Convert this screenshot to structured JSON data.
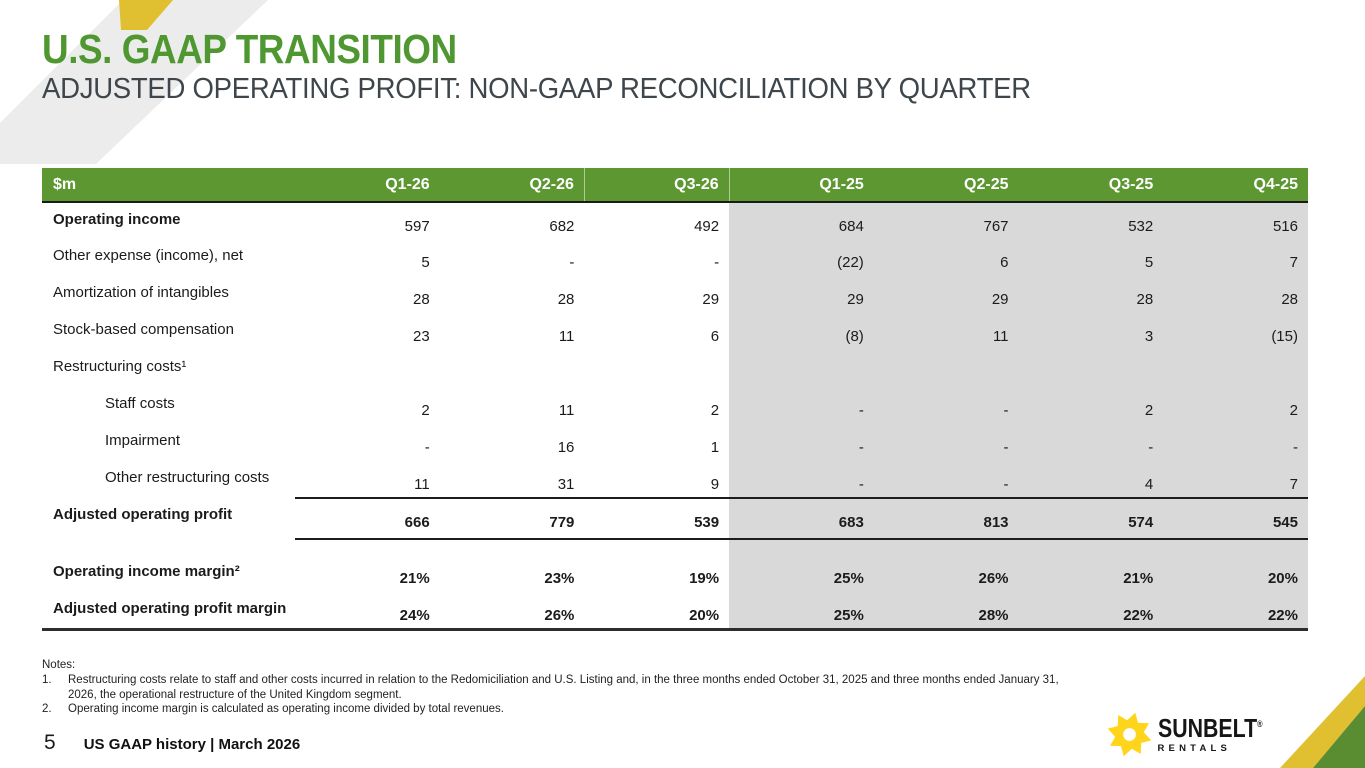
{
  "slide": {
    "title": "U.S. GAAP TRANSITION",
    "subtitle": "ADJUSTED OPERATING PROFIT: NON-GAAP RECONCILIATION BY QUARTER",
    "page_number": "5",
    "footer": "US GAAP history | March 2026"
  },
  "colors": {
    "header_green": "#5d9732",
    "title_green": "#4f9730",
    "subtitle_gray": "#3e464b",
    "shaded_column_gray": "#d9d9d9",
    "deco_gray": "#ececec",
    "deco_yellow": "#e0c030",
    "corner_green": "#5a8c32",
    "logo_yellow": "#ffd51c"
  },
  "table": {
    "unit_header": "$m",
    "columns": [
      "Q1-26",
      "Q2-26",
      "Q3-26",
      "Q1-25",
      "Q2-25",
      "Q3-25",
      "Q4-25"
    ],
    "shaded_columns": [
      "Q1-25",
      "Q2-25",
      "Q3-25",
      "Q4-25"
    ],
    "rows": [
      {
        "label": "Operating income",
        "bold": true,
        "values": [
          "597",
          "682",
          "492",
          "684",
          "767",
          "532",
          "516"
        ]
      },
      {
        "label": "Other expense (income), net",
        "values": [
          "5",
          "-",
          "-",
          "(22)",
          "6",
          "5",
          "7"
        ]
      },
      {
        "label": "Amortization of intangibles",
        "values": [
          "28",
          "28",
          "29",
          "29",
          "29",
          "28",
          "28"
        ]
      },
      {
        "label": "Stock-based compensation",
        "values": [
          "23",
          "11",
          "6",
          "(8)",
          "11",
          "3",
          "(15)"
        ]
      },
      {
        "label": "Restructuring costs¹",
        "values": [
          "",
          "",
          "",
          "",
          "",
          "",
          ""
        ]
      },
      {
        "label": "Staff costs",
        "indent": true,
        "values": [
          "2",
          "11",
          "2",
          "-",
          "-",
          "2",
          "2"
        ]
      },
      {
        "label": "Impairment",
        "indent": true,
        "values": [
          "-",
          "16",
          "1",
          "-",
          "-",
          "-",
          "-"
        ]
      },
      {
        "label": "Other restructuring costs",
        "indent": true,
        "values": [
          "11",
          "31",
          "9",
          "-",
          "-",
          "4",
          "7"
        ]
      },
      {
        "label": "Adjusted operating profit",
        "bold": true,
        "bold_values": true,
        "subtotal": true,
        "values": [
          "666",
          "779",
          "539",
          "683",
          "813",
          "574",
          "545"
        ]
      },
      {
        "spacer": true
      },
      {
        "label": "Operating income margin²",
        "bold": true,
        "bold_values": true,
        "values": [
          "21%",
          "23%",
          "19%",
          "25%",
          "26%",
          "21%",
          "20%"
        ]
      },
      {
        "label": "Adjusted operating profit margin",
        "bold": true,
        "bold_values": true,
        "values": [
          "24%",
          "26%",
          "20%",
          "25%",
          "28%",
          "22%",
          "22%"
        ]
      }
    ]
  },
  "notes": {
    "heading": "Notes:",
    "items": [
      {
        "num": "1.",
        "text": "Restructuring costs relate to staff and other costs incurred in relation to the Redomiciliation and U.S. Listing and, in the three months ended October 31, 2025 and three months ended January 31, 2026, the operational restructure of the United Kingdom segment."
      },
      {
        "num": "2.",
        "text": "Operating income margin is calculated as operating income divided by total revenues."
      }
    ]
  },
  "logo": {
    "name": "SUNBELT",
    "reg": "®",
    "sub": "RENTALS"
  }
}
